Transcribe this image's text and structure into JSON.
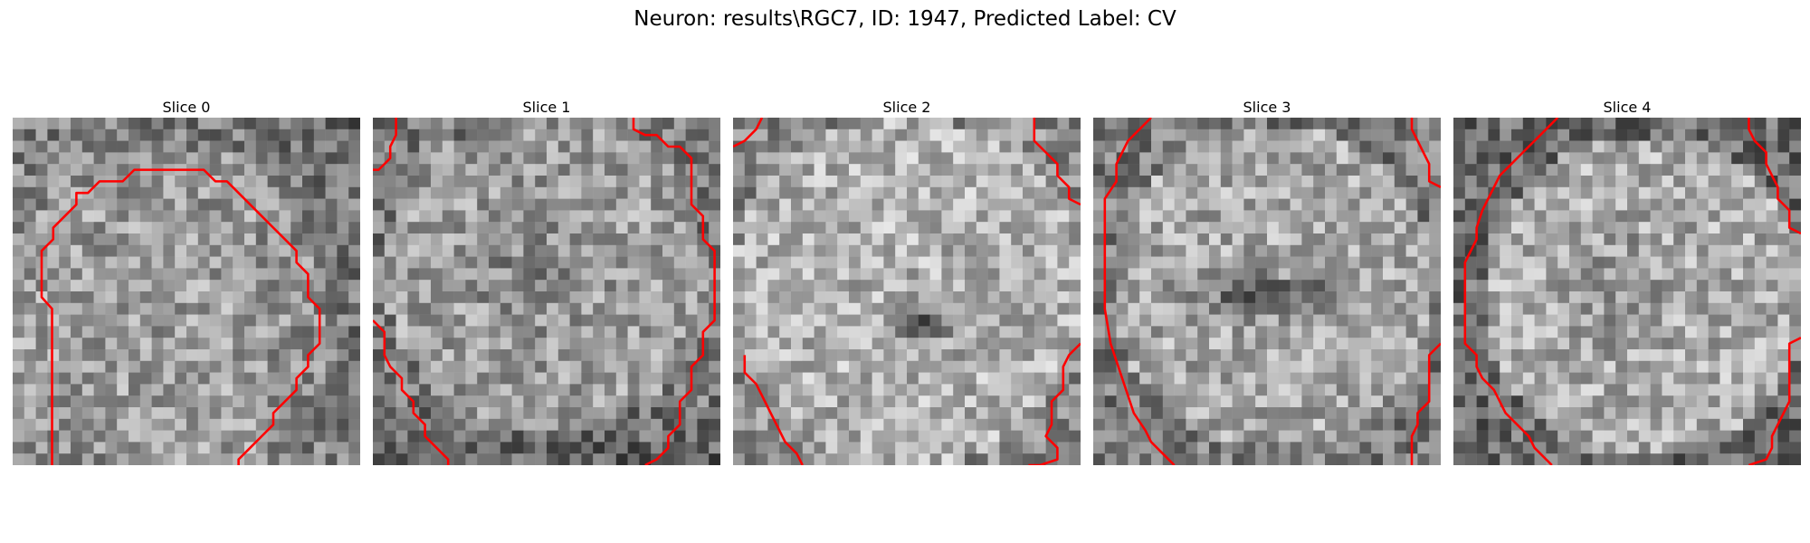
{
  "title": "Neuron: results\\RGC7, ID: 1947, Predicted Label: CV",
  "contour_color": "#ff0000",
  "grid_size": 30,
  "slices": [
    {
      "label": "Slice 0",
      "contours": [
        [
          [
            2.9,
            29.5
          ],
          [
            2.9,
            16
          ],
          [
            2,
            15
          ],
          [
            2,
            11
          ],
          [
            3,
            10
          ],
          [
            3,
            9
          ],
          [
            4,
            8
          ],
          [
            5,
            7
          ],
          [
            5,
            6
          ],
          [
            6,
            6
          ],
          [
            7,
            5
          ],
          [
            8,
            5
          ],
          [
            9,
            5
          ],
          [
            10,
            4
          ],
          [
            11,
            4
          ],
          [
            12,
            4
          ],
          [
            13,
            4
          ],
          [
            14,
            4
          ],
          [
            15,
            4
          ],
          [
            16,
            4
          ],
          [
            17,
            5
          ],
          [
            18,
            5
          ],
          [
            19,
            6
          ],
          [
            20,
            7
          ],
          [
            21,
            8
          ],
          [
            22,
            9
          ],
          [
            23,
            10
          ],
          [
            24,
            11
          ],
          [
            24,
            12
          ],
          [
            25,
            13
          ],
          [
            25,
            14
          ],
          [
            25,
            15
          ],
          [
            26,
            16
          ],
          [
            26,
            17
          ],
          [
            26,
            18
          ],
          [
            26,
            19
          ],
          [
            25,
            20
          ],
          [
            25,
            21
          ],
          [
            24,
            22
          ],
          [
            24,
            23
          ],
          [
            23,
            24
          ],
          [
            22,
            25
          ],
          [
            22,
            26
          ],
          [
            21,
            27
          ],
          [
            20,
            28
          ],
          [
            19,
            29
          ],
          [
            19,
            29.5
          ]
        ]
      ]
    },
    {
      "label": "Slice 1",
      "contours": [
        [
          [
            1.5,
            -0.5
          ],
          [
            1.5,
            1
          ],
          [
            1,
            2
          ],
          [
            1,
            3
          ],
          [
            0,
            4
          ],
          [
            -0.5,
            4
          ]
        ],
        [
          [
            22,
            -0.5
          ],
          [
            22,
            0.5
          ],
          [
            23,
            1
          ],
          [
            24,
            1
          ],
          [
            25,
            2
          ],
          [
            26,
            2
          ],
          [
            27,
            3
          ],
          [
            27,
            4
          ],
          [
            27,
            5
          ],
          [
            27,
            6
          ],
          [
            27,
            7
          ],
          [
            28,
            8
          ],
          [
            28,
            9
          ],
          [
            28,
            10
          ],
          [
            29,
            11
          ],
          [
            29,
            12
          ],
          [
            29,
            13
          ],
          [
            29,
            14
          ],
          [
            29,
            15
          ],
          [
            29,
            16
          ],
          [
            29,
            17
          ],
          [
            28,
            18
          ],
          [
            28,
            19
          ],
          [
            28,
            20
          ],
          [
            27,
            21
          ],
          [
            27,
            22
          ],
          [
            27,
            23
          ],
          [
            26,
            24
          ],
          [
            26,
            25
          ],
          [
            26,
            26
          ],
          [
            25,
            27
          ],
          [
            25,
            28
          ],
          [
            24,
            29
          ],
          [
            23,
            29.5
          ]
        ],
        [
          [
            -0.5,
            17
          ],
          [
            0.5,
            18
          ],
          [
            0.5,
            20
          ],
          [
            1,
            21
          ],
          [
            2,
            22
          ],
          [
            2,
            23
          ],
          [
            3,
            24
          ],
          [
            3,
            25
          ],
          [
            4,
            26
          ],
          [
            4,
            27
          ],
          [
            5,
            28
          ],
          [
            6,
            29
          ],
          [
            6,
            29.5
          ]
        ]
      ]
    },
    {
      "label": "Slice 2",
      "contours": [
        [
          [
            -0.5,
            2
          ],
          [
            0.5,
            1.5
          ],
          [
            1.5,
            0.5
          ],
          [
            2,
            -0.5
          ]
        ],
        [
          [
            25.5,
            -0.5
          ],
          [
            25.5,
            1.5
          ],
          [
            26.5,
            2.5
          ],
          [
            27.5,
            3.5
          ],
          [
            27.5,
            4.5
          ],
          [
            28.5,
            5.5
          ],
          [
            28.5,
            6.5
          ],
          [
            29.5,
            7
          ]
        ],
        [
          [
            29.5,
            19
          ],
          [
            28.5,
            20
          ],
          [
            28,
            21
          ],
          [
            28,
            23
          ],
          [
            27,
            24
          ],
          [
            27,
            26
          ],
          [
            26.5,
            27
          ],
          [
            27.5,
            28
          ],
          [
            27.5,
            29
          ],
          [
            26,
            29.5
          ],
          [
            25,
            29.5
          ]
        ],
        [
          [
            0.5,
            20
          ],
          [
            0.5,
            21.5
          ],
          [
            1.5,
            22.5
          ],
          [
            2,
            23.5
          ],
          [
            2.5,
            24.5
          ],
          [
            3,
            25.5
          ],
          [
            3.5,
            26.5
          ],
          [
            4,
            27.5
          ],
          [
            5,
            28.5
          ],
          [
            5.5,
            29.5
          ]
        ]
      ]
    },
    {
      "label": "Slice 3",
      "contours": [
        [
          [
            4.5,
            -0.5
          ],
          [
            3.5,
            0.5
          ],
          [
            2.5,
            1.5
          ],
          [
            2,
            2.5
          ],
          [
            1.5,
            3.5
          ],
          [
            1.5,
            5
          ],
          [
            0.5,
            6.5
          ],
          [
            0.5,
            8
          ],
          [
            0.5,
            12
          ],
          [
            0.5,
            16
          ],
          [
            1,
            19
          ],
          [
            1.5,
            20.5
          ],
          [
            2,
            22
          ],
          [
            2.5,
            23.5
          ],
          [
            3,
            25
          ],
          [
            4,
            26.5
          ],
          [
            4.5,
            27.5
          ],
          [
            5.5,
            28.5
          ],
          [
            6.5,
            29.5
          ]
        ],
        [
          [
            27,
            -0.5
          ],
          [
            27,
            0.5
          ],
          [
            27.5,
            1.5
          ],
          [
            28,
            2.5
          ],
          [
            28.5,
            3.5
          ],
          [
            28.5,
            5
          ],
          [
            29.5,
            5.5
          ]
        ],
        [
          [
            29.5,
            19
          ],
          [
            28.5,
            20
          ],
          [
            28.5,
            22
          ],
          [
            28.5,
            24
          ],
          [
            27.5,
            25
          ],
          [
            27.5,
            26
          ],
          [
            27,
            27
          ],
          [
            27,
            28.5
          ],
          [
            27,
            29.5
          ]
        ]
      ]
    },
    {
      "label": "Slice 4",
      "contours": [
        [
          [
            8.5,
            -0.5
          ],
          [
            7.5,
            0.5
          ],
          [
            6.5,
            1.5
          ],
          [
            5.5,
            2.5
          ],
          [
            4.5,
            3.5
          ],
          [
            3.5,
            4.5
          ],
          [
            3,
            5.5
          ],
          [
            2.5,
            6.5
          ],
          [
            2,
            7.5
          ],
          [
            1.5,
            9
          ],
          [
            1.5,
            10
          ],
          [
            1,
            11
          ],
          [
            0.5,
            12
          ],
          [
            0.5,
            16
          ],
          [
            0.5,
            19
          ],
          [
            1.5,
            20
          ],
          [
            1.5,
            21
          ],
          [
            2,
            22
          ],
          [
            3,
            23
          ],
          [
            3.5,
            24
          ],
          [
            4,
            25
          ],
          [
            5,
            26
          ],
          [
            6,
            27
          ],
          [
            6.5,
            28
          ],
          [
            7,
            28.5
          ],
          [
            7.5,
            29
          ],
          [
            8,
            29.5
          ]
        ],
        [
          [
            25,
            -0.5
          ],
          [
            25,
            0.5
          ],
          [
            25.5,
            1.5
          ],
          [
            26.5,
            2.5
          ],
          [
            26.5,
            3.5
          ],
          [
            27,
            4.5
          ],
          [
            27.5,
            5.5
          ],
          [
            27.5,
            6.5
          ],
          [
            28.5,
            7.5
          ],
          [
            28.5,
            9
          ],
          [
            29.5,
            9.5
          ]
        ],
        [
          [
            29.5,
            18.5
          ],
          [
            28.5,
            19
          ],
          [
            28.5,
            21
          ],
          [
            28.5,
            22
          ],
          [
            28.5,
            24
          ],
          [
            28,
            25
          ],
          [
            27.5,
            26
          ],
          [
            27,
            27
          ],
          [
            27,
            28
          ],
          [
            26.5,
            29
          ],
          [
            25,
            29.5
          ]
        ]
      ]
    }
  ]
}
